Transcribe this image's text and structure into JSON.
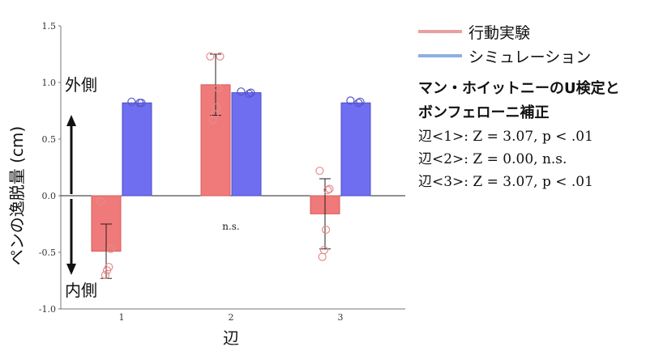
{
  "chart_data": {
    "type": "bar",
    "categories": [
      "1",
      "2",
      "3"
    ],
    "series": [
      {
        "name": "行動実験",
        "color": "#f07a7a",
        "values": [
          -0.49,
          0.98,
          -0.16
        ],
        "error": [
          0.24,
          0.27,
          0.31
        ],
        "points": [
          [
            -0.05,
            -0.47,
            -0.63,
            -0.66,
            -0.7
          ],
          [
            1.23,
            1.23,
            0.95,
            0.78,
            0.72,
            0.67
          ],
          [
            0.22,
            0.06,
            0.05,
            -0.3,
            -0.48,
            -0.54
          ]
        ]
      },
      {
        "name": "シミュレーション",
        "color": "#6f6ef0",
        "values": [
          0.82,
          0.91,
          0.82
        ],
        "error": [
          0.01,
          0.02,
          0.01
        ],
        "points": [
          [
            0.83,
            0.82,
            0.82
          ],
          [
            0.92,
            0.91,
            0.9
          ],
          [
            0.84,
            0.83,
            0.82
          ]
        ]
      }
    ],
    "ylabel": "ペンの逸脱量 (cm)",
    "xlabel": "辺",
    "ylim": [
      -1.0,
      1.5
    ],
    "yticks": [
      "-1.0",
      "-0.5",
      "0.0",
      "0.5",
      "1.0",
      "1.5"
    ],
    "annotations": {
      "outer": "外側",
      "inner": "内側",
      "ns": "n.s."
    },
    "grid": false,
    "legend_position": "top-right"
  },
  "legend": {
    "behavior_label": "行動実験",
    "simulation_label": "シミュレーション",
    "behavior_color": "#e8a0a0",
    "simulation_color": "#8fb0e0"
  },
  "stats": {
    "title_line1": "マン・ホイットニーのU検定と",
    "title_line2": "ボンフェローニ補正",
    "lines": [
      "辺<1>: Z = 3.07, p < .01",
      "辺<2>: Z = 0.00, n.s.",
      "辺<3>: Z = 3.07, p < .01"
    ]
  }
}
